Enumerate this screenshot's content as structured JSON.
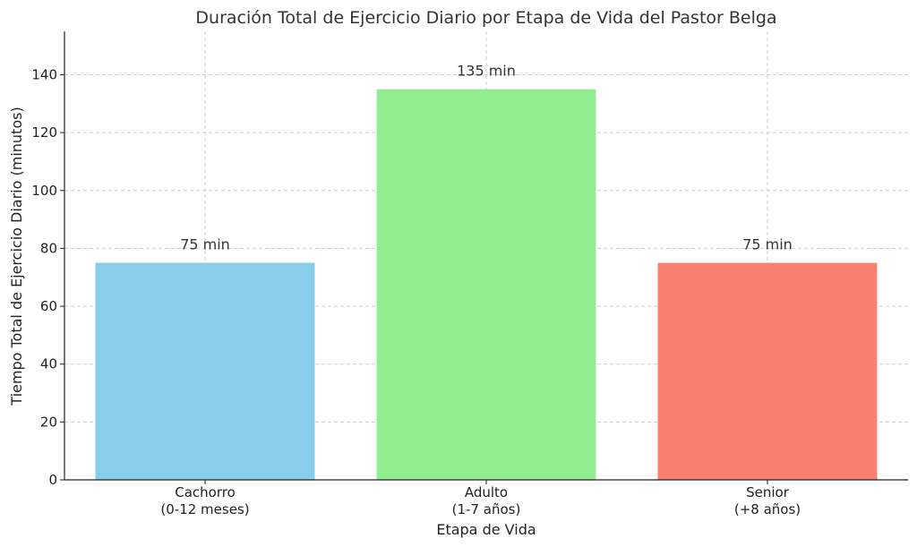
{
  "chart_data": {
    "type": "bar",
    "title": "Duración Total de Ejercicio Diario por Etapa de Vida del Pastor Belga",
    "xlabel": "Etapa de Vida",
    "ylabel": "Tiempo Total de Ejercicio Diario (minutos)",
    "categories": [
      [
        "Cachorro",
        "(0-12 meses)"
      ],
      [
        "Adulto",
        "(1-7 años)"
      ],
      [
        "Senior",
        "(+8 años)"
      ]
    ],
    "values": [
      75,
      135,
      75
    ],
    "data_labels": [
      "75 min",
      "135 min",
      "75 min"
    ],
    "colors": [
      "#87ceeb",
      "#90ee90",
      "#fa8072"
    ],
    "ylim": [
      0,
      155
    ],
    "yticks": [
      0,
      20,
      40,
      60,
      80,
      100,
      120,
      140
    ],
    "grid": true
  }
}
